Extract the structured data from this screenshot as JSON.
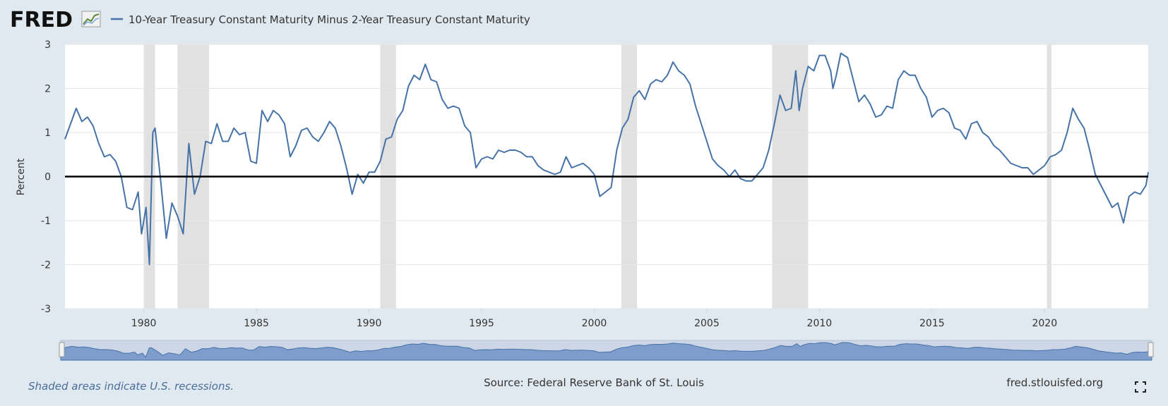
{
  "chart_data": {
    "type": "line",
    "logo": "FRED",
    "ylabel": "Percent",
    "source": "Source: Federal Reserve Bank of St. Louis",
    "site": "fred.stlouisfed.org",
    "note": "Shaded areas indicate U.S. recessions.",
    "x": [
      1976.5,
      1976.75,
      1977,
      1977.25,
      1977.5,
      1977.75,
      1978,
      1978.25,
      1978.5,
      1978.75,
      1979,
      1979.25,
      1979.5,
      1979.75,
      1979.9,
      1980.1,
      1980.25,
      1980.4,
      1980.5,
      1980.75,
      1981,
      1981.25,
      1981.5,
      1981.75,
      1982,
      1982.25,
      1982.5,
      1982.75,
      1983,
      1983.25,
      1983.5,
      1983.75,
      1984,
      1984.25,
      1984.5,
      1984.75,
      1985,
      1985.25,
      1985.5,
      1985.75,
      1986,
      1986.25,
      1986.5,
      1986.75,
      1987,
      1987.25,
      1987.5,
      1987.75,
      1988,
      1988.25,
      1988.5,
      1988.75,
      1989,
      1989.25,
      1989.5,
      1989.75,
      1990,
      1990.25,
      1990.5,
      1990.75,
      1991,
      1991.25,
      1991.5,
      1991.75,
      1992,
      1992.25,
      1992.5,
      1992.75,
      1993,
      1993.25,
      1993.5,
      1993.75,
      1994,
      1994.25,
      1994.5,
      1994.75,
      1995,
      1995.25,
      1995.5,
      1995.75,
      1996,
      1996.25,
      1996.5,
      1996.75,
      1997,
      1997.25,
      1997.5,
      1997.75,
      1998,
      1998.25,
      1998.5,
      1998.75,
      1999,
      1999.25,
      1999.5,
      1999.75,
      2000,
      2000.25,
      2000.5,
      2000.75,
      2001,
      2001.25,
      2001.5,
      2001.75,
      2002,
      2002.25,
      2002.5,
      2002.75,
      2003,
      2003.25,
      2003.5,
      2003.75,
      2004,
      2004.25,
      2004.5,
      2004.75,
      2005,
      2005.25,
      2005.5,
      2005.75,
      2006,
      2006.25,
      2006.5,
      2006.75,
      2007,
      2007.25,
      2007.5,
      2007.75,
      2008,
      2008.25,
      2008.5,
      2008.75,
      2008.95,
      2009.1,
      2009.25,
      2009.5,
      2009.75,
      2010,
      2010.25,
      2010.5,
      2010.6,
      2010.75,
      2010.95,
      2011.25,
      2011.5,
      2011.75,
      2012,
      2012.25,
      2012.5,
      2012.75,
      2013,
      2013.25,
      2013.5,
      2013.75,
      2014,
      2014.25,
      2014.5,
      2014.75,
      2015,
      2015.25,
      2015.5,
      2015.75,
      2016,
      2016.25,
      2016.5,
      2016.75,
      2017,
      2017.25,
      2017.5,
      2017.75,
      2018,
      2018.25,
      2018.5,
      2018.75,
      2019,
      2019.25,
      2019.5,
      2019.75,
      2020,
      2020.25,
      2020.5,
      2020.75,
      2021,
      2021.25,
      2021.5,
      2021.75,
      2022,
      2022.25,
      2022.5,
      2022.75,
      2023,
      2023.25,
      2023.5,
      2023.75,
      2024,
      2024.25,
      2024.5,
      2024.6
    ],
    "series": [
      {
        "name": "10-Year Treasury Constant Maturity Minus 2-Year Treasury Constant Maturity",
        "color": "#4572a7",
        "values": [
          0.85,
          1.2,
          1.55,
          1.25,
          1.35,
          1.15,
          0.75,
          0.45,
          0.5,
          0.35,
          0,
          -0.7,
          -0.75,
          -0.35,
          -1.3,
          -0.7,
          -2,
          1,
          1.1,
          -0.1,
          -1.4,
          -0.6,
          -0.9,
          -1.3,
          0.75,
          -0.4,
          0,
          0.8,
          0.75,
          1.2,
          0.8,
          0.8,
          1.1,
          0.95,
          1.0,
          0.35,
          0.3,
          1.5,
          1.25,
          1.5,
          1.4,
          1.2,
          0.45,
          0.7,
          1.05,
          1.1,
          0.9,
          0.8,
          1.0,
          1.25,
          1.1,
          0.7,
          0.2,
          -0.4,
          0.05,
          -0.15,
          0.1,
          0.1,
          0.35,
          0.85,
          0.9,
          1.3,
          1.5,
          2.05,
          2.3,
          2.2,
          2.55,
          2.2,
          2.15,
          1.75,
          1.55,
          1.6,
          1.55,
          1.15,
          1.0,
          0.2,
          0.4,
          0.45,
          0.4,
          0.6,
          0.55,
          0.6,
          0.6,
          0.55,
          0.45,
          0.45,
          0.25,
          0.15,
          0.1,
          0.05,
          0.1,
          0.45,
          0.2,
          0.25,
          0.3,
          0.2,
          0.05,
          -0.45,
          -0.35,
          -0.25,
          0.6,
          1.1,
          1.3,
          1.8,
          1.95,
          1.75,
          2.1,
          2.2,
          2.15,
          2.3,
          2.6,
          2.4,
          2.3,
          2.1,
          1.6,
          1.2,
          0.8,
          0.4,
          0.25,
          0.15,
          0,
          0.15,
          -0.05,
          -0.1,
          -0.1,
          0.05,
          0.2,
          0.6,
          1.2,
          1.85,
          1.5,
          1.55,
          2.4,
          1.5,
          2.0,
          2.5,
          2.4,
          2.75,
          2.75,
          2.4,
          2.0,
          2.3,
          2.8,
          2.7,
          2.2,
          1.7,
          1.85,
          1.65,
          1.35,
          1.4,
          1.6,
          1.55,
          2.2,
          2.4,
          2.3,
          2.3,
          2.0,
          1.8,
          1.35,
          1.5,
          1.55,
          1.45,
          1.1,
          1.05,
          0.85,
          1.2,
          1.25,
          1.0,
          0.9,
          0.7,
          0.6,
          0.45,
          0.3,
          0.25,
          0.2,
          0.2,
          0.05,
          0.15,
          0.25,
          0.45,
          0.5,
          0.6,
          1.0,
          1.55,
          1.3,
          1.1,
          0.6,
          0.05,
          -0.2,
          -0.45,
          -0.7,
          -0.6,
          -1.05,
          -0.45,
          -0.35,
          -0.4,
          -0.2,
          0.1
        ]
      }
    ],
    "xlim": [
      1976.5,
      2024.6
    ],
    "xticks": [
      1980,
      1985,
      1990,
      1995,
      2000,
      2005,
      2010,
      2015,
      2020
    ],
    "ylim": [
      -3,
      3
    ],
    "yticks": [
      -3,
      -2,
      -1,
      0,
      1,
      2,
      3
    ],
    "grid": true,
    "reference_line": {
      "value": 0,
      "color": "#000000"
    },
    "recessions": [
      [
        1980.0,
        1980.5
      ],
      [
        1981.5,
        1982.9
      ],
      [
        1990.5,
        1991.2
      ],
      [
        2001.2,
        2001.9
      ],
      [
        2007.9,
        2009.5
      ],
      [
        2020.1,
        2020.3
      ]
    ],
    "recession_color": "#e1e1e1"
  }
}
